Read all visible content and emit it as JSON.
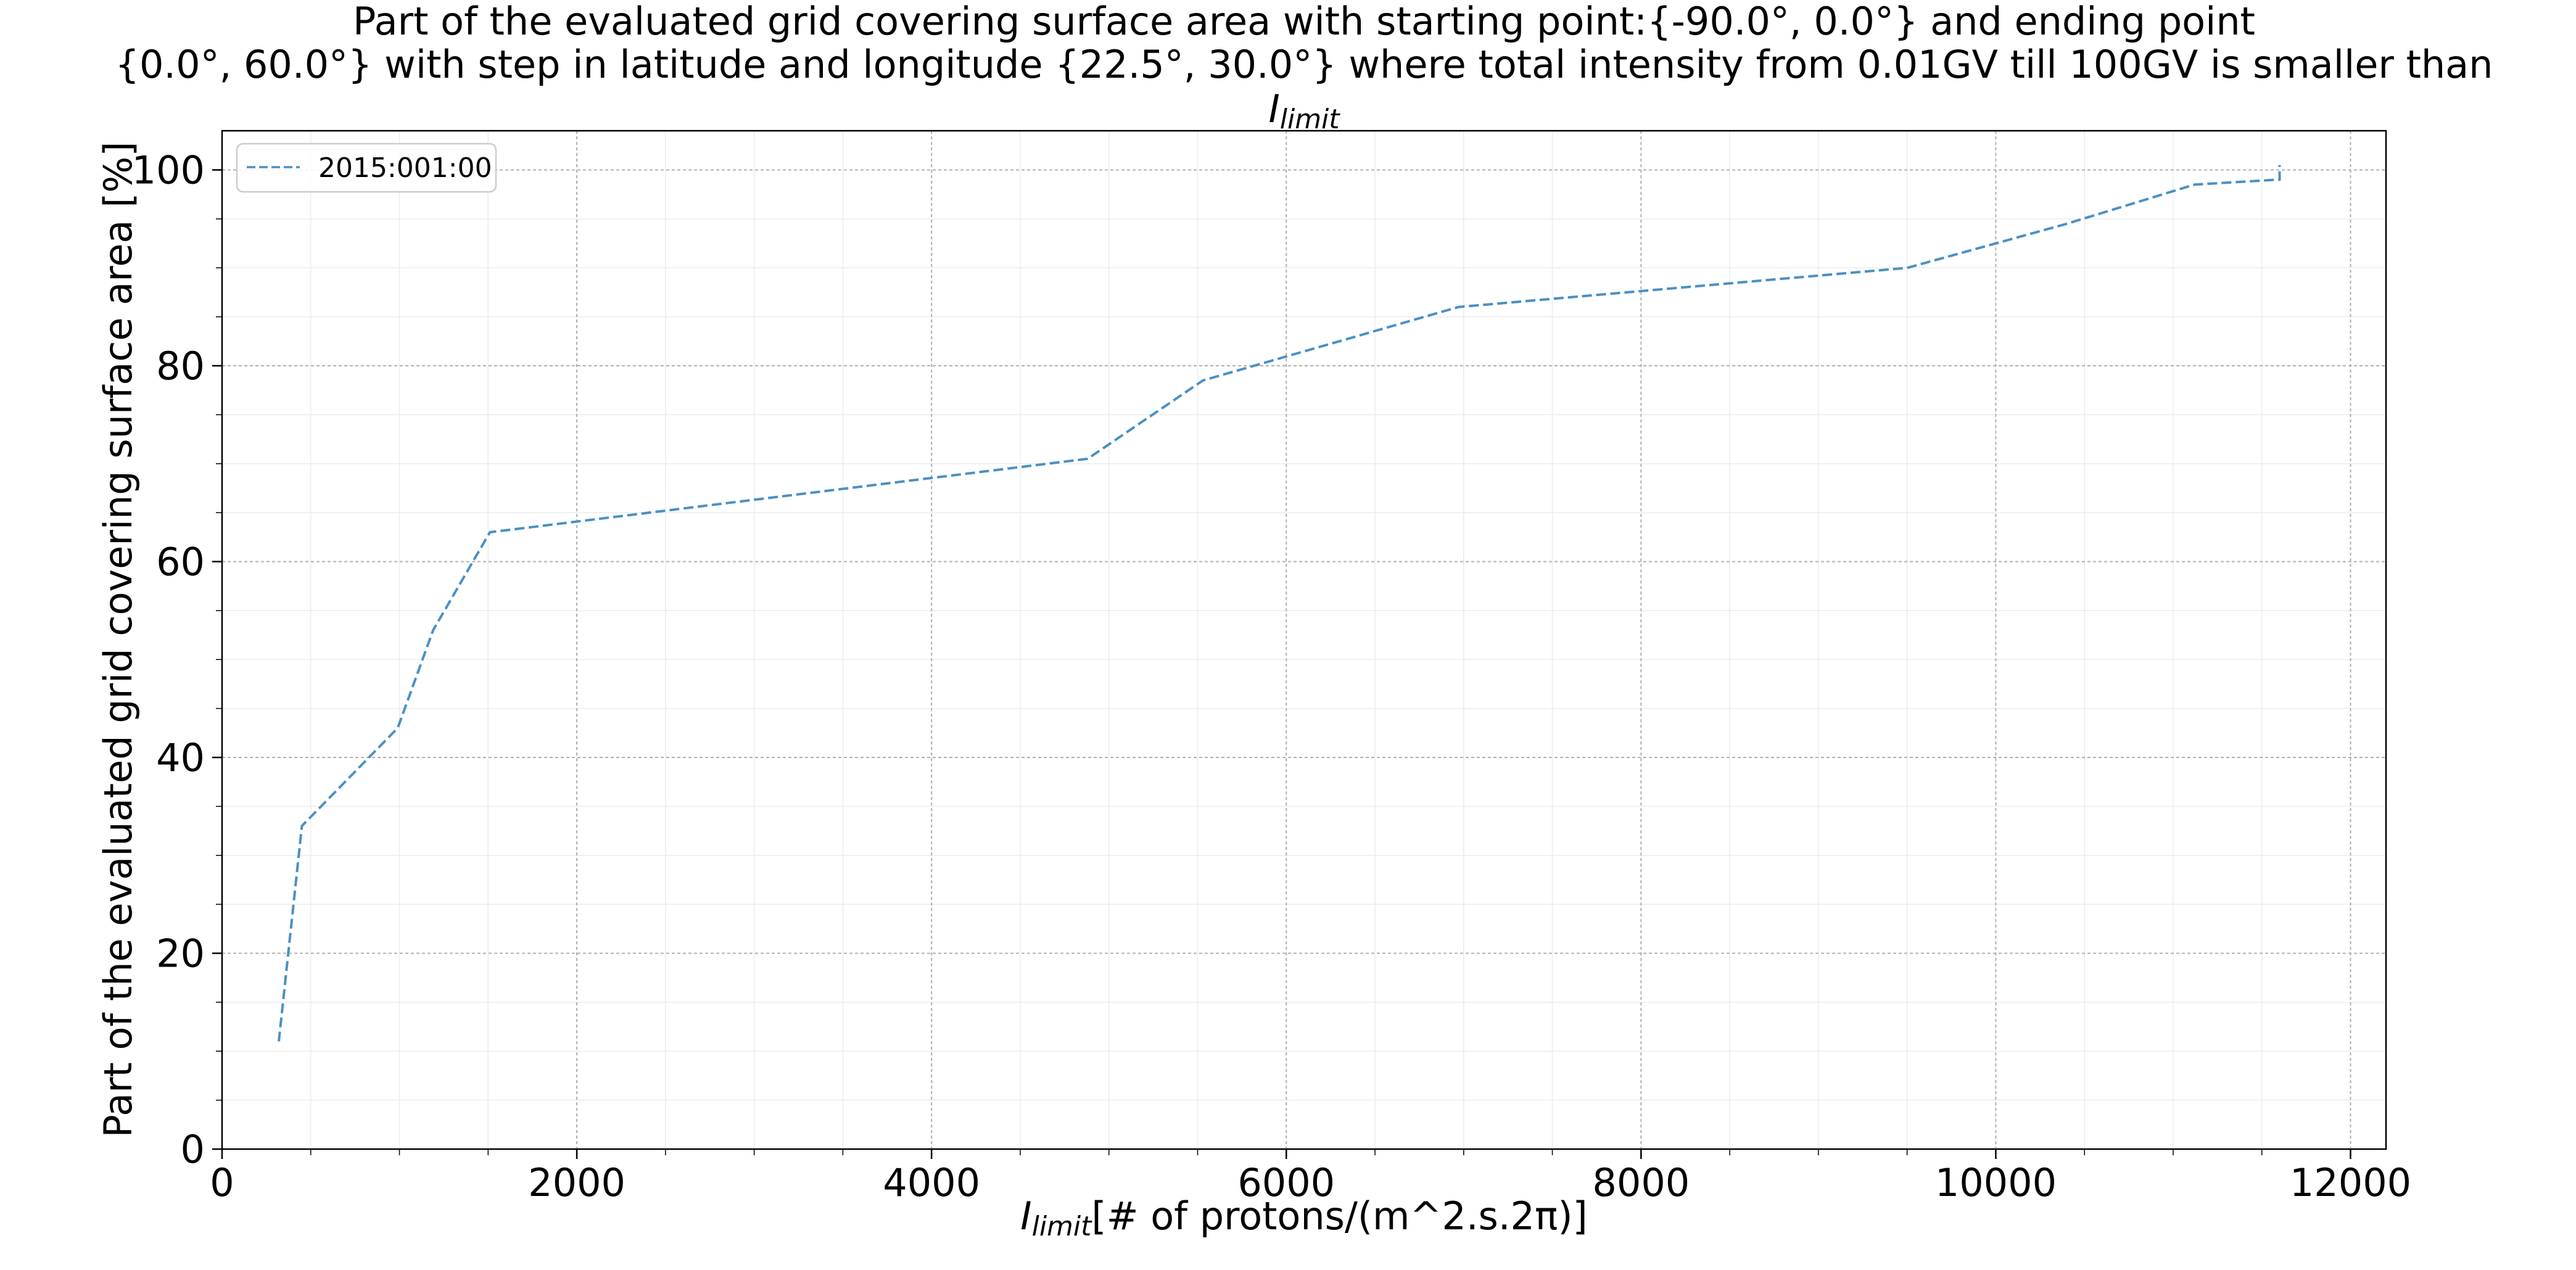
{
  "chart_data": {
    "type": "line",
    "title_lines": [
      "Part of the evaluated grid covering surface area with starting point:{-90.0°, 0.0°} and ending point",
      "{0.0°, 60.0°} with step in latitude and longitude {22.5°, 30.0°} where total intensity from 0.01GV till 100GV is smaller than"
    ],
    "title_symbol": {
      "main": "I",
      "subscript": "limit"
    },
    "xlabel": {
      "symbol": "I",
      "subscript": "limit",
      "text": "[# of protons/(m^2.s.2π)]"
    },
    "ylabel": "Part of the evaluated grid covering surface area  [%]",
    "xlim": [
      0,
      12200
    ],
    "ylim": [
      0,
      104
    ],
    "xticks": [
      0,
      2000,
      4000,
      6000,
      8000,
      10000,
      12000
    ],
    "yticks": [
      0,
      20,
      40,
      60,
      80,
      100
    ],
    "xtick_labels": [
      "0",
      "2000",
      "4000",
      "6000",
      "8000",
      "10000",
      "12000"
    ],
    "ytick_labels": [
      "0",
      "20",
      "40",
      "60",
      "80",
      "100"
    ],
    "grid": true,
    "legend_position": "upper-left",
    "series": [
      {
        "name": "2015:001:00",
        "color": "#4a90c4",
        "line_style": "dashed",
        "x": [
          320,
          450,
          990,
          1190,
          1510,
          4880,
          5530,
          6970,
          9500,
          10400,
          11120,
          11580,
          11600,
          11600
        ],
        "y": [
          11,
          33,
          43,
          53,
          63,
          70.5,
          78.5,
          86,
          90,
          94.5,
          98.5,
          99,
          99,
          100.5
        ]
      }
    ]
  }
}
